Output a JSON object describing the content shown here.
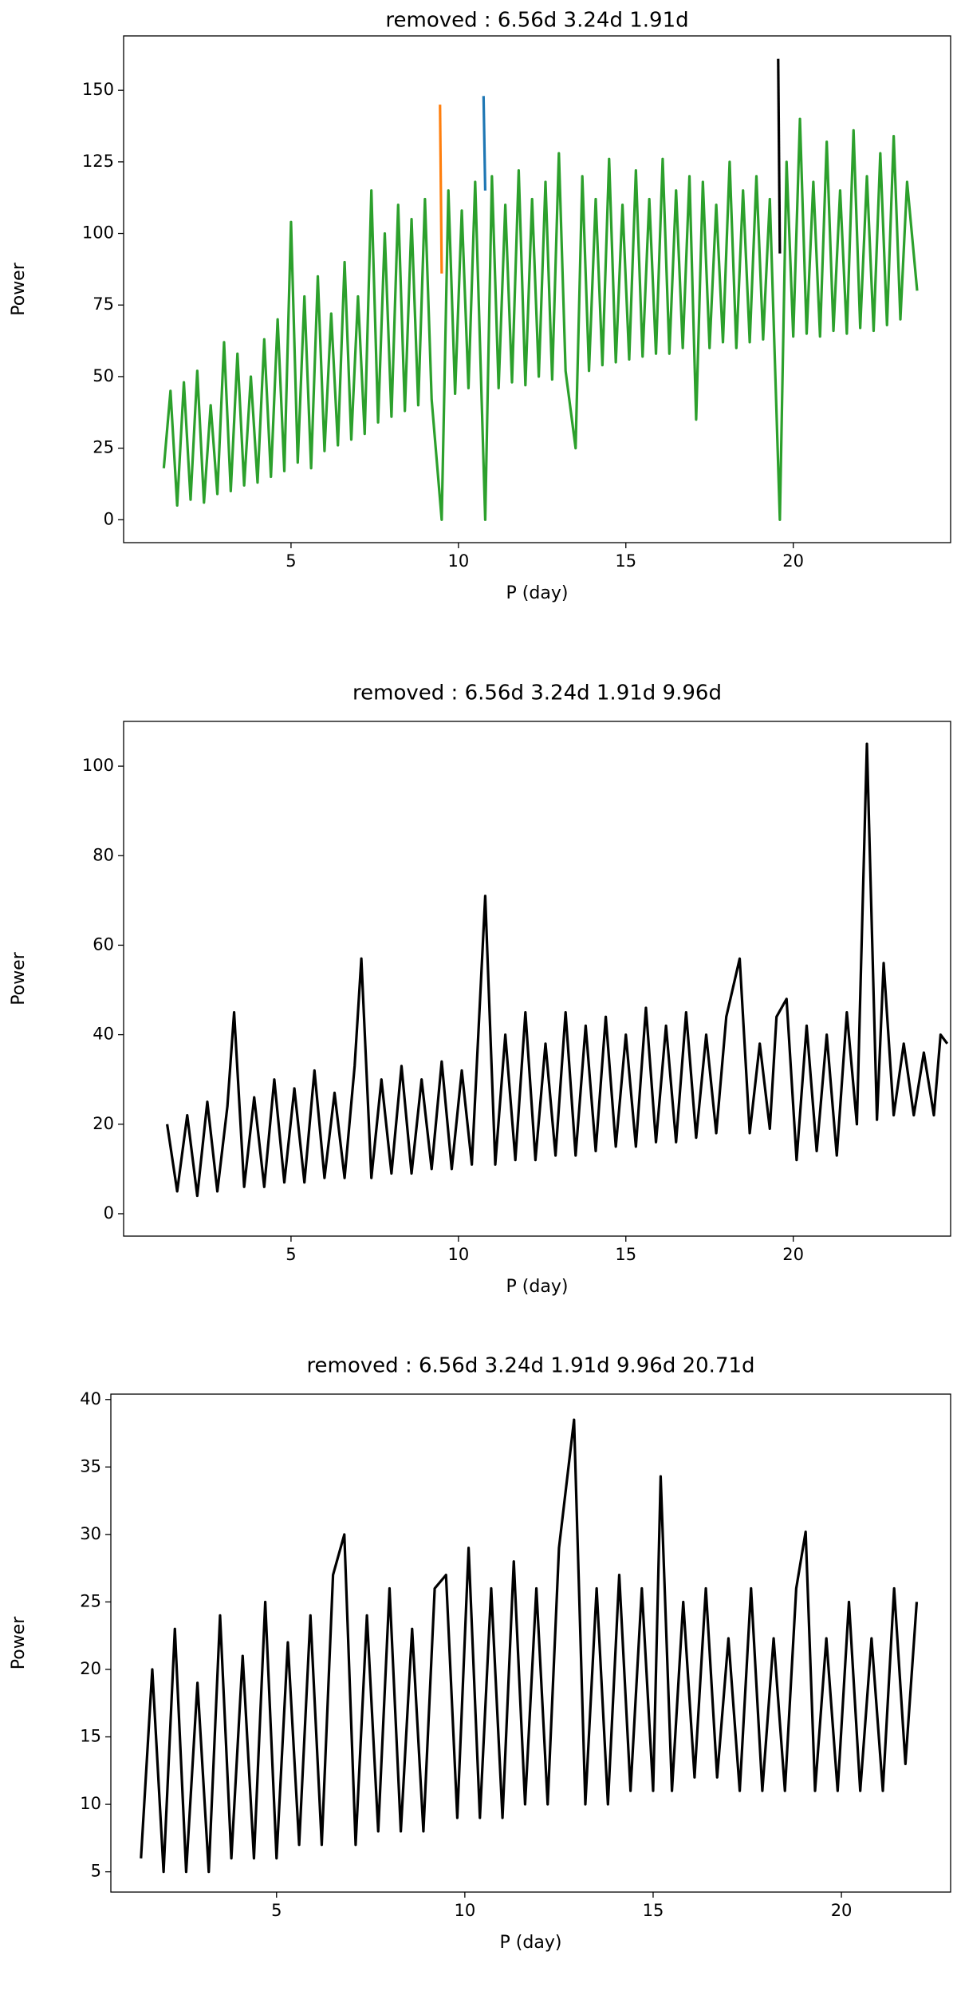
{
  "chart_data": [
    {
      "type": "line",
      "title": "removed : 6.56d 3.24d 1.91d",
      "xlabel": "P (day)",
      "ylabel": "Power",
      "xlim": [
        0,
        24.7
      ],
      "ylim": [
        -8,
        169
      ],
      "xticks": [
        5,
        10,
        15,
        20
      ],
      "yticks": [
        0,
        25,
        50,
        75,
        100,
        125,
        150
      ],
      "series": [
        {
          "color": "#ff7f0e",
          "x": [
            9.45,
            9.5
          ],
          "values": [
            145,
            86
          ]
        },
        {
          "color": "#1f77b4",
          "x": [
            10.75,
            10.8
          ],
          "values": [
            148,
            115
          ]
        },
        {
          "color": "#2ca02c",
          "x": [
            1.2,
            1.4,
            1.6,
            1.8,
            2.0,
            2.2,
            2.4,
            2.6,
            2.8,
            3.0,
            3.2,
            3.4,
            3.6,
            3.8,
            4.0,
            4.2,
            4.4,
            4.6,
            4.8,
            5.0,
            5.2,
            5.4,
            5.6,
            5.8,
            6.0,
            6.2,
            6.4,
            6.6,
            6.8,
            7.0,
            7.2,
            7.4,
            7.6,
            7.8,
            8.0,
            8.2,
            8.4,
            8.6,
            8.8,
            9.0,
            9.2,
            9.5,
            9.7,
            9.9,
            10.1,
            10.3,
            10.5,
            10.8,
            11.0,
            11.2,
            11.4,
            11.6,
            11.8,
            12.0,
            12.2,
            12.4,
            12.6,
            12.8,
            13.0,
            13.2,
            13.5,
            13.7,
            13.9,
            14.1,
            14.3,
            14.5,
            14.7,
            14.9,
            15.1,
            15.3,
            15.5,
            15.7,
            15.9,
            16.1,
            16.3,
            16.5,
            16.7,
            16.9,
            17.1,
            17.3,
            17.5,
            17.7,
            17.9,
            18.1,
            18.3,
            18.5,
            18.7,
            18.9,
            19.1,
            19.3,
            19.6,
            19.8,
            20.0,
            20.2,
            20.4,
            20.6,
            20.8,
            21.0,
            21.2,
            21.4,
            21.6,
            21.8,
            22.0,
            22.2,
            22.4,
            22.6,
            22.8,
            23.0,
            23.2,
            23.4,
            23.7
          ],
          "values": [
            18,
            45,
            5,
            48,
            7,
            52,
            6,
            40,
            9,
            62,
            10,
            58,
            12,
            50,
            13,
            63,
            15,
            70,
            17,
            104,
            20,
            78,
            18,
            85,
            24,
            72,
            26,
            90,
            28,
            78,
            30,
            115,
            34,
            100,
            36,
            110,
            38,
            105,
            40,
            112,
            42,
            0,
            115,
            44,
            108,
            46,
            118,
            0,
            120,
            46,
            110,
            48,
            122,
            47,
            112,
            50,
            118,
            49,
            128,
            52,
            25,
            120,
            52,
            112,
            54,
            126,
            55,
            110,
            56,
            122,
            57,
            112,
            58,
            126,
            58,
            115,
            60,
            120,
            35,
            118,
            60,
            110,
            62,
            125,
            60,
            115,
            62,
            120,
            63,
            112,
            0,
            125,
            64,
            140,
            65,
            118,
            64,
            132,
            66,
            115,
            65,
            136,
            67,
            120,
            66,
            128,
            68,
            134,
            70,
            118,
            80
          ]
        },
        {
          "color": "#000000",
          "x": [
            19.55,
            19.6
          ],
          "values": [
            161,
            93
          ]
        }
      ]
    },
    {
      "type": "line",
      "title": "removed : 6.56d 3.24d 1.91d 9.96d",
      "xlabel": "P (day)",
      "ylabel": "Power",
      "xlim": [
        0,
        24.7
      ],
      "ylim": [
        -5,
        110
      ],
      "xticks": [
        5,
        10,
        15,
        20
      ],
      "yticks": [
        0,
        20,
        40,
        60,
        80,
        100
      ],
      "series": [
        {
          "color": "#000000",
          "x": [
            1.3,
            1.6,
            1.9,
            2.2,
            2.5,
            2.8,
            3.1,
            3.3,
            3.6,
            3.9,
            4.2,
            4.5,
            4.8,
            5.1,
            5.4,
            5.7,
            6.0,
            6.3,
            6.6,
            6.9,
            7.1,
            7.4,
            7.7,
            8.0,
            8.3,
            8.6,
            8.9,
            9.2,
            9.5,
            9.8,
            10.1,
            10.4,
            10.8,
            11.1,
            11.4,
            11.7,
            12.0,
            12.3,
            12.6,
            12.9,
            13.2,
            13.5,
            13.8,
            14.1,
            14.4,
            14.7,
            15.0,
            15.3,
            15.6,
            15.9,
            16.2,
            16.5,
            16.8,
            17.1,
            17.4,
            17.7,
            18.0,
            18.4,
            18.7,
            19.0,
            19.3,
            19.5,
            19.8,
            20.1,
            20.4,
            20.7,
            21.0,
            21.3,
            21.6,
            21.9,
            22.2,
            22.5,
            22.7,
            23.0,
            23.3,
            23.6,
            23.9,
            24.2,
            24.4,
            24.6
          ],
          "values": [
            20,
            5,
            22,
            4,
            25,
            5,
            24,
            45,
            6,
            26,
            6,
            30,
            7,
            28,
            7,
            32,
            8,
            27,
            8,
            33,
            57,
            8,
            30,
            9,
            33,
            9,
            30,
            10,
            34,
            10,
            32,
            11,
            71,
            11,
            40,
            12,
            45,
            12,
            38,
            13,
            45,
            13,
            42,
            14,
            44,
            15,
            40,
            15,
            46,
            16,
            42,
            16,
            45,
            17,
            40,
            18,
            44,
            57,
            18,
            38,
            19,
            44,
            48,
            12,
            42,
            14,
            40,
            13,
            45,
            20,
            105,
            21,
            56,
            22,
            38,
            22,
            36,
            22,
            40,
            38
          ]
        }
      ]
    },
    {
      "type": "line",
      "title": "removed : 6.56d 3.24d 1.91d 9.96d 20.71d",
      "xlabel": "P (day)",
      "ylabel": "Power",
      "xlim": [
        0.6,
        22.9
      ],
      "ylim": [
        3.5,
        40.4
      ],
      "xticks": [
        5,
        10,
        15,
        20
      ],
      "yticks": [
        5,
        10,
        15,
        20,
        25,
        30,
        35,
        40
      ],
      "series": [
        {
          "color": "#000000",
          "x": [
            1.4,
            1.7,
            2.0,
            2.3,
            2.6,
            2.9,
            3.2,
            3.5,
            3.8,
            4.1,
            4.4,
            4.7,
            5.0,
            5.3,
            5.6,
            5.9,
            6.2,
            6.5,
            6.8,
            7.1,
            7.4,
            7.7,
            8.0,
            8.3,
            8.6,
            8.9,
            9.2,
            9.5,
            9.8,
            10.1,
            10.4,
            10.7,
            11.0,
            11.3,
            11.6,
            11.9,
            12.2,
            12.5,
            12.9,
            13.2,
            13.5,
            13.8,
            14.1,
            14.4,
            14.7,
            15.0,
            15.2,
            15.5,
            15.8,
            16.1,
            16.4,
            16.7,
            17.0,
            17.3,
            17.6,
            17.9,
            18.2,
            18.5,
            18.8,
            19.05,
            19.3,
            19.6,
            19.9,
            20.2,
            20.5,
            20.8,
            21.1,
            21.4,
            21.7,
            22.0
          ],
          "values": [
            6,
            20,
            5,
            23,
            5,
            19,
            5,
            24,
            6,
            21,
            6,
            25,
            6,
            22,
            7,
            24,
            7,
            27,
            30,
            7,
            24,
            8,
            26,
            8,
            23,
            8,
            26,
            27,
            9,
            29,
            9,
            26,
            9,
            28,
            10,
            26,
            10,
            29,
            38.5,
            10,
            26,
            10,
            27,
            11,
            26,
            11,
            34.3,
            11,
            25,
            12,
            26,
            12,
            22.3,
            11,
            26,
            11,
            22.3,
            11,
            26,
            30.2,
            11,
            22.3,
            11,
            25,
            11,
            22.3,
            11,
            26,
            13,
            25
          ]
        }
      ]
    }
  ]
}
